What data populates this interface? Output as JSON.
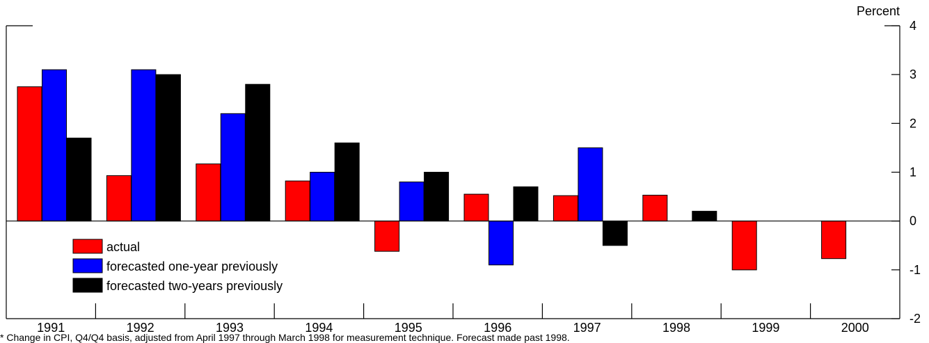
{
  "chart_data": {
    "type": "bar",
    "ylabel": "Percent",
    "ylim": [
      -2,
      4
    ],
    "yticks": [
      -2,
      -1,
      0,
      1,
      2,
      3,
      4
    ],
    "categories": [
      "1991",
      "1992",
      "1993",
      "1994",
      "1995",
      "1996",
      "1997",
      "1998",
      "1999",
      "2000"
    ],
    "series": [
      {
        "name": "actual",
        "color": "#ff0000",
        "values": [
          2.75,
          0.93,
          1.17,
          0.82,
          -0.62,
          0.55,
          0.52,
          0.53,
          -1.0,
          -0.77
        ]
      },
      {
        "name": "forecasted one-year previously",
        "color": "#0000ff",
        "values": [
          3.1,
          3.1,
          2.2,
          1.0,
          0.8,
          -0.9,
          1.5,
          0,
          0,
          null
        ]
      },
      {
        "name": "forecasted two-years previously",
        "color": "#000000",
        "values": [
          1.7,
          3.0,
          2.8,
          1.6,
          1.0,
          0.7,
          -0.5,
          0.2,
          0,
          null
        ]
      }
    ],
    "legend_position": "bottom-left",
    "footnote": "* Change in CPI,  Q4/Q4 basis, adjusted from April 1997 through March 1998 for measurement technique.   Forecast made past 1998."
  }
}
